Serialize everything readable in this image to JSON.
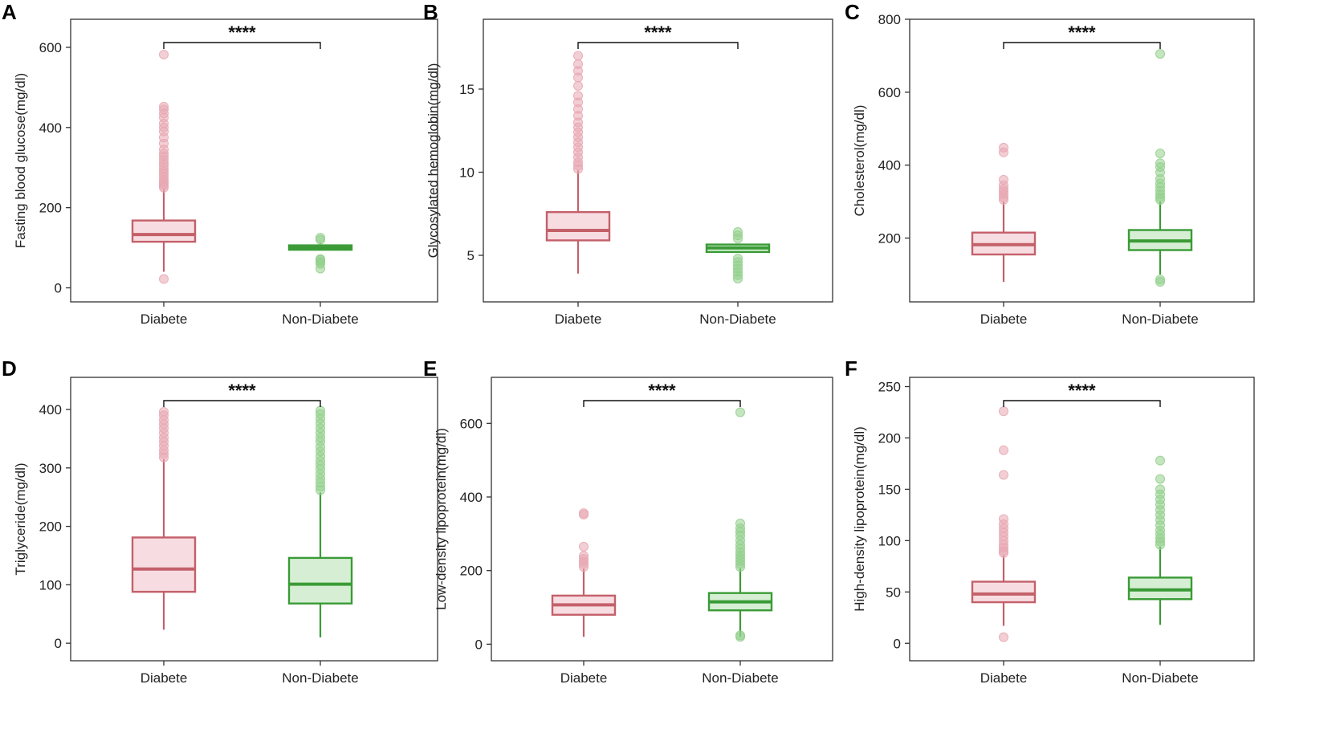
{
  "figure_title": "",
  "colors": {
    "diabete_stroke": "#c4606a",
    "diabete_fill": "#f7dde2",
    "diabete_outlier": "#e8a8b3",
    "nondiabete_stroke": "#3a9b36",
    "nondiabete_fill": "#d6efd4",
    "nondiabete_outlier": "#93d08d",
    "axis": "#333333"
  },
  "chart_data": [
    {
      "panel": "A",
      "type": "box",
      "ylabel": "Fasting blood glucose(mg/dl)",
      "xlabel": "",
      "categories": [
        "Diabete",
        "Non-Diabete"
      ],
      "ylim": [
        -35,
        670
      ],
      "yticks": [
        0,
        200,
        400,
        600
      ],
      "significance": "****",
      "boxes": [
        {
          "name": "Diabete",
          "min": 40,
          "q1": 115,
          "median": 133,
          "q3": 168,
          "max": 248,
          "outliers": [
            22,
            250,
            255,
            260,
            265,
            270,
            278,
            285,
            290,
            297,
            305,
            312,
            320,
            328,
            335,
            345,
            360,
            375,
            390,
            400,
            410,
            425,
            435,
            445,
            452,
            582
          ]
        },
        {
          "name": "Non-Diabete",
          "min": 95,
          "q1": 95,
          "median": 100,
          "q3": 106,
          "max": 112,
          "outliers": [
            48,
            60,
            65,
            70,
            72,
            120,
            125
          ]
        }
      ]
    },
    {
      "panel": "B",
      "type": "box",
      "ylabel": "Glycosylated hemoglobin(mg/dl)",
      "xlabel": "",
      "categories": [
        "Diabete",
        "Non-Diabete"
      ],
      "ylim": [
        2.2,
        19.2
      ],
      "yticks": [
        5,
        10,
        15
      ],
      "significance": "****",
      "boxes": [
        {
          "name": "Diabete",
          "min": 3.9,
          "q1": 5.9,
          "median": 6.5,
          "q3": 7.6,
          "max": 10.1,
          "outliers": [
            10.2,
            10.4,
            10.6,
            10.9,
            11.2,
            11.5,
            11.8,
            12.1,
            12.4,
            12.7,
            13.0,
            13.4,
            13.8,
            14.2,
            14.6,
            15.2,
            15.7,
            16.1,
            16.5,
            17.0
          ]
        },
        {
          "name": "Non-Diabete",
          "min": 5.2,
          "q1": 5.2,
          "median": 5.45,
          "q3": 5.65,
          "max": 5.7,
          "outliers": [
            3.6,
            3.8,
            4.0,
            4.2,
            4.4,
            4.6,
            4.8,
            6.0,
            6.2,
            6.4
          ]
        }
      ]
    },
    {
      "panel": "C",
      "type": "box",
      "ylabel": "Cholesterol(mg/dl)",
      "xlabel": "",
      "categories": [
        "Diabete",
        "Non-Diabete"
      ],
      "ylim": [
        25,
        800
      ],
      "yticks": [
        200,
        400,
        600,
        800
      ],
      "significance": "****",
      "boxes": [
        {
          "name": "Diabete",
          "min": 80,
          "q1": 155,
          "median": 182,
          "q3": 215,
          "max": 300,
          "outliers": [
            305,
            312,
            320,
            328,
            335,
            345,
            360,
            435,
            448
          ]
        },
        {
          "name": "Non-Diabete",
          "min": 100,
          "q1": 167,
          "median": 192,
          "q3": 222,
          "max": 300,
          "outliers": [
            80,
            86,
            305,
            312,
            320,
            330,
            340,
            350,
            362,
            380,
            395,
            405,
            432,
            705
          ]
        }
      ]
    },
    {
      "panel": "D",
      "type": "box",
      "ylabel": "Triglyceride(mg/dl)",
      "xlabel": "",
      "categories": [
        "Diabete",
        "Non-Diabete"
      ],
      "ylim": [
        -30,
        455
      ],
      "yticks": [
        0,
        100,
        200,
        300,
        400
      ],
      "significance": "****",
      "boxes": [
        {
          "name": "Diabete",
          "min": 23,
          "q1": 88,
          "median": 127,
          "q3": 181,
          "max": 315,
          "outliers": [
            318,
            324,
            330,
            338,
            345,
            352,
            360,
            368,
            375,
            382,
            390,
            396
          ]
        },
        {
          "name": "Non-Diabete",
          "min": 10,
          "q1": 68,
          "median": 101,
          "q3": 146,
          "max": 258,
          "outliers": [
            262,
            268,
            275,
            282,
            290,
            298,
            305,
            312,
            320,
            328,
            336,
            345,
            352,
            360,
            368,
            376,
            384,
            392,
            398
          ]
        }
      ]
    },
    {
      "panel": "E",
      "type": "box",
      "ylabel": "Low-density lipoprotein(mg/dl)",
      "xlabel": "",
      "categories": [
        "Diabete",
        "Non-Diabete"
      ],
      "ylim": [
        -45,
        725
      ],
      "yticks": [
        0,
        200,
        400,
        600
      ],
      "significance": "****",
      "boxes": [
        {
          "name": "Diabete",
          "min": 20,
          "q1": 80,
          "median": 107,
          "q3": 132,
          "max": 205,
          "outliers": [
            210,
            218,
            225,
            232,
            240,
            265,
            352,
            356
          ]
        },
        {
          "name": "Non-Diabete",
          "min": 20,
          "q1": 92,
          "median": 115,
          "q3": 139,
          "max": 205,
          "outliers": [
            20,
            24,
            210,
            218,
            226,
            234,
            242,
            250,
            260,
            270,
            282,
            295,
            305,
            315,
            328,
            630
          ]
        }
      ]
    },
    {
      "panel": "F",
      "type": "box",
      "ylabel": "High-density lipoprotein(mg/dl)",
      "xlabel": "",
      "categories": [
        "Diabete",
        "Non-Diabete"
      ],
      "ylim": [
        -17,
        259
      ],
      "yticks": [
        0,
        50,
        100,
        150,
        200,
        250
      ],
      "significance": "****",
      "boxes": [
        {
          "name": "Diabete",
          "min": 17,
          "q1": 40,
          "median": 48,
          "q3": 60,
          "max": 86,
          "outliers": [
            6,
            88,
            90,
            93,
            96,
            100,
            104,
            108,
            112,
            116,
            121,
            164,
            188,
            226
          ]
        },
        {
          "name": "Non-Diabete",
          "min": 18,
          "q1": 43,
          "median": 52,
          "q3": 64,
          "max": 94,
          "outliers": [
            96,
            99,
            102,
            106,
            110,
            115,
            120,
            125,
            130,
            135,
            140,
            145,
            150,
            160,
            178
          ]
        }
      ]
    }
  ]
}
